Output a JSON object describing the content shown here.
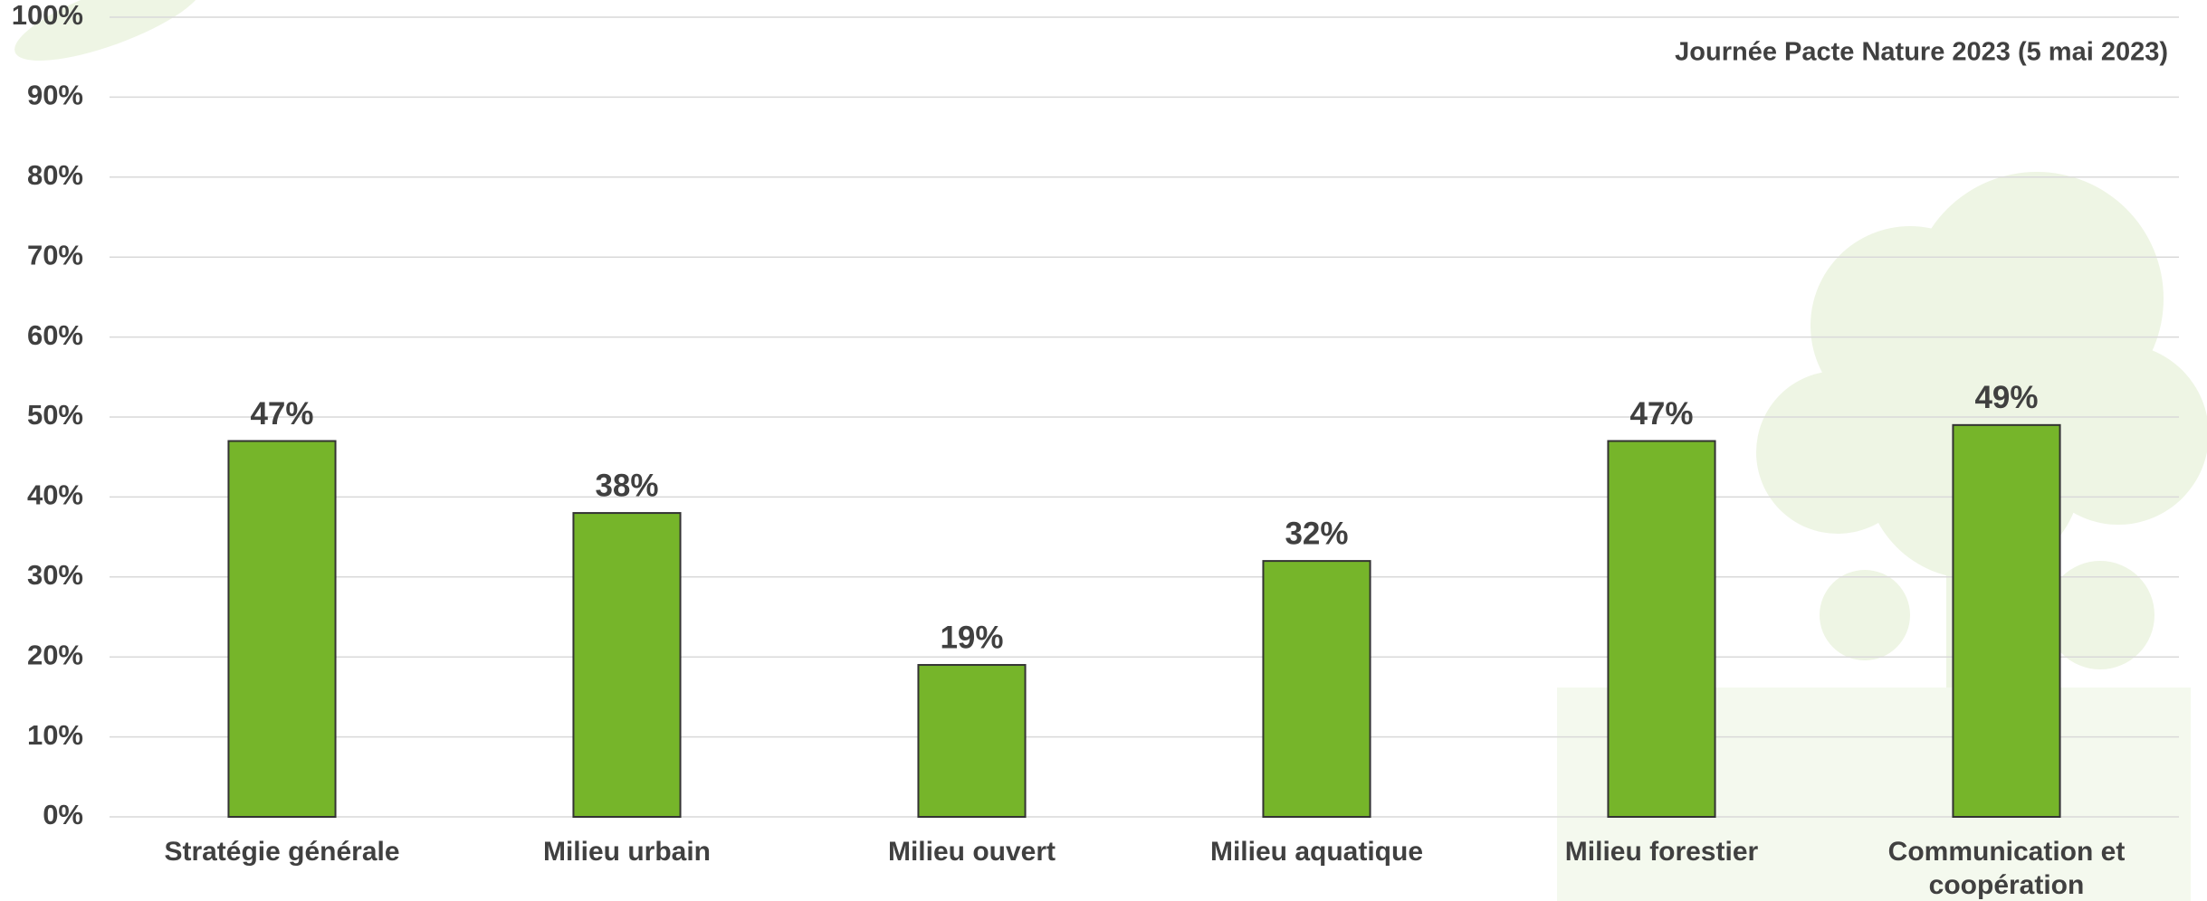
{
  "chart_data": {
    "type": "bar",
    "subtitle": "Journée Pacte Nature 2023 (5 mai 2023)",
    "categories": [
      "Stratégie générale",
      "Milieu urbain",
      "Milieu ouvert",
      "Milieu aquatique",
      "Milieu forestier",
      "Communication et coopération"
    ],
    "values": [
      47,
      38,
      19,
      32,
      47,
      49
    ],
    "value_labels": [
      "47%",
      "38%",
      "19%",
      "32%",
      "47%",
      "49%"
    ],
    "color": "#76b52a",
    "ylim": [
      0,
      100
    ],
    "yticks": [
      {
        "value": 0,
        "label": "0%"
      },
      {
        "value": 10,
        "label": "10%"
      },
      {
        "value": 20,
        "label": "20%"
      },
      {
        "value": 30,
        "label": "30%"
      },
      {
        "value": 40,
        "label": "40%"
      },
      {
        "value": 50,
        "label": "50%"
      },
      {
        "value": 60,
        "label": "60%"
      },
      {
        "value": 70,
        "label": "70%"
      },
      {
        "value": 80,
        "label": "80%"
      },
      {
        "value": 90,
        "label": "90%"
      },
      {
        "value": 100,
        "label": "100%"
      }
    ],
    "grid": true
  }
}
